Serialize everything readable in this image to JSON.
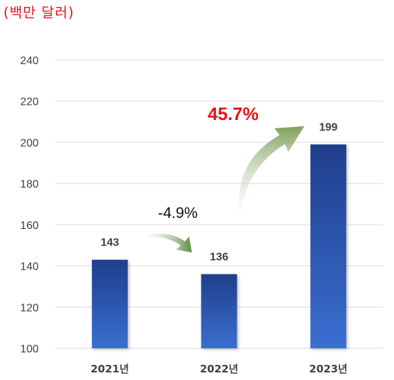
{
  "unit_label": "(백만 달러)",
  "colors": {
    "unit": "#e8121b",
    "bar_top": "#1f3e8c",
    "bar_bottom": "#3a6fd0",
    "grid": "#d9d9d9",
    "growth": "#e8121b",
    "arrow": "#7fa05c"
  },
  "icons": {
    "arrow_1": "curved-arrow-right-down",
    "arrow_2": "curved-arrow-up-right"
  },
  "annotations": {
    "change_1": "-4.9%",
    "change_2": "45.7%"
  },
  "chart_data": {
    "type": "bar",
    "categories": [
      "2021년",
      "2022년",
      "2023년"
    ],
    "values": [
      143,
      136,
      199
    ],
    "value_labels": [
      "143",
      "136",
      "199"
    ],
    "yticks": [
      100,
      120,
      140,
      160,
      180,
      200,
      220,
      240
    ],
    "ylim": [
      100,
      240
    ],
    "grid": true,
    "legend": "none"
  }
}
